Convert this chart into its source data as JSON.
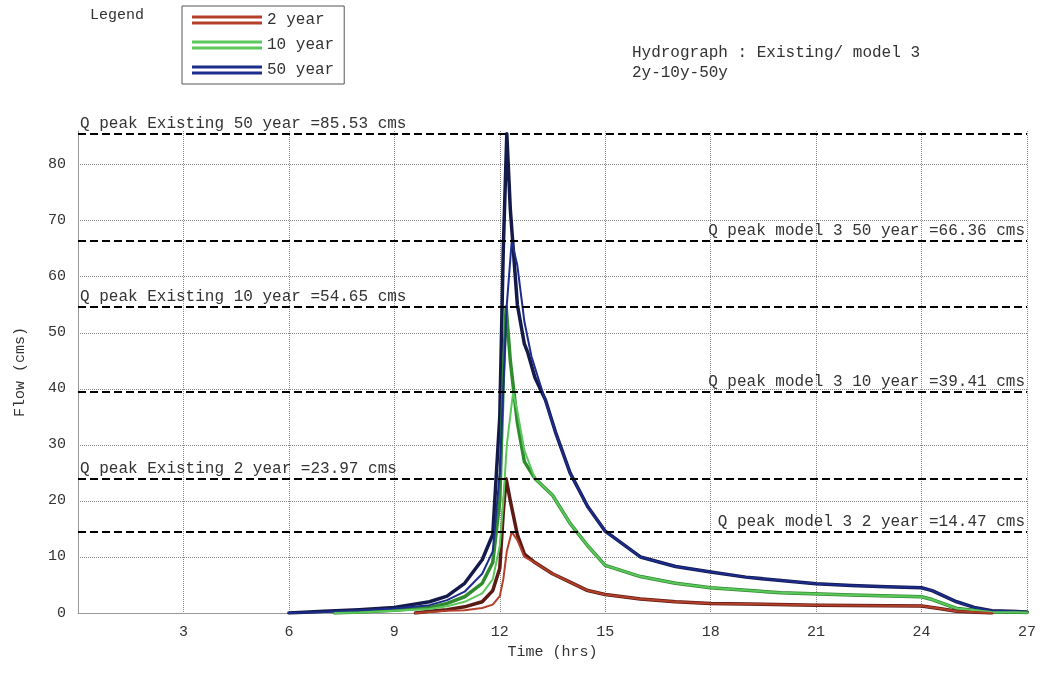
{
  "chart_data": {
    "type": "line",
    "title": "Hydrograph : Existing/ model 3",
    "subtitle": "2y-10y-50y",
    "xlabel": "Time (hrs)",
    "ylabel": "Flow (cms)",
    "legend_title": "Legend",
    "xlim": [
      0,
      27
    ],
    "xticks": [
      {
        "value": 0,
        "label": null
      },
      3,
      6,
      9,
      12,
      15,
      18,
      21,
      24,
      27
    ],
    "ylim": [
      0,
      86
    ],
    "yticks": [
      0,
      10,
      20,
      30,
      40,
      50,
      60,
      70,
      80
    ],
    "grid": true,
    "legend": "top left",
    "marker": "none",
    "series": [
      {
        "color": "#141a4a",
        "x": [
          6,
          7,
          8,
          9,
          10,
          10.5,
          11,
          11.5,
          11.8,
          12,
          12.1,
          12.2,
          12.3,
          12.5,
          12.7,
          12.8,
          13,
          13.3,
          13.6,
          14,
          14.5,
          15,
          16,
          17,
          18,
          19,
          20,
          21,
          22,
          23,
          24,
          24.3,
          25,
          25.5,
          26,
          27
        ],
        "values": [
          0,
          0.3,
          0.6,
          1,
          2,
          3,
          5.3,
          9.5,
          14,
          35,
          65,
          85.53,
          72,
          55,
          48,
          46.4,
          42,
          38,
          32,
          25,
          19,
          14.6,
          10,
          8.3,
          7.3,
          6.4,
          5.8,
          5.2,
          4.9,
          4.7,
          4.5,
          4,
          2,
          1,
          0.4,
          0.2
        ]
      },
      {
        "name": "50 year",
        "color": "#1c2c8c",
        "x": [
          6,
          7,
          8,
          9,
          10,
          10.5,
          11,
          11.5,
          11.8,
          12,
          12.1,
          12.2,
          12.34,
          12.5,
          12.7,
          12.9,
          13.2,
          13.6,
          14,
          14.5,
          15,
          16,
          17,
          18,
          19,
          20,
          21,
          22,
          23,
          24,
          24.3,
          25,
          25.5,
          26,
          27
        ],
        "values": [
          0,
          0.2,
          0.5,
          0.8,
          1.4,
          2.3,
          3.8,
          7,
          11,
          25,
          40,
          55,
          66.36,
          62,
          52,
          45.8,
          39.8,
          32,
          25,
          19,
          14.6,
          10,
          8.3,
          7.3,
          6.4,
          5.8,
          5.2,
          4.9,
          4.7,
          4.5,
          4,
          2,
          1,
          0.4,
          0.2
        ]
      },
      {
        "color": "#2e8b2e",
        "x": [
          7.3,
          8,
          9,
          10,
          10.5,
          11,
          11.5,
          11.8,
          12,
          12.1,
          12.18,
          12.3,
          12.5,
          12.7,
          13,
          13.5,
          14,
          14.5,
          15,
          16,
          17,
          18,
          20,
          22,
          24,
          24.3,
          25,
          26,
          27
        ],
        "values": [
          0,
          0.2,
          0.5,
          1,
          1.7,
          2.9,
          5.3,
          9,
          20,
          42,
          54.65,
          45,
          34,
          27,
          24,
          21,
          16,
          12,
          8.5,
          6.5,
          5.3,
          4.5,
          3.6,
          3.2,
          2.9,
          2.4,
          0.8,
          0.2,
          0.1
        ]
      },
      {
        "name": "10 year",
        "color": "#5cc85c",
        "x": [
          7.3,
          8,
          9,
          10,
          10.5,
          11,
          11.5,
          11.8,
          12,
          12.1,
          12.2,
          12.38,
          12.5,
          12.7,
          13,
          13.5,
          14,
          14.5,
          15,
          16,
          17,
          18,
          20,
          22,
          24,
          24.3,
          25,
          26,
          27
        ],
        "values": [
          0,
          0.1,
          0.4,
          0.7,
          1.2,
          2,
          3.5,
          6,
          12,
          20,
          30,
          39.41,
          36,
          29,
          24,
          21,
          16,
          12,
          8.5,
          6.5,
          5.3,
          4.5,
          3.6,
          3.2,
          2.9,
          2.4,
          0.8,
          0.2,
          0.1
        ]
      },
      {
        "color": "#5c1a14",
        "x": [
          9.6,
          10,
          10.5,
          11,
          11.5,
          11.8,
          12,
          12.1,
          12.18,
          12.3,
          12.5,
          12.7,
          13,
          13.5,
          14,
          14.5,
          15,
          16,
          17,
          18,
          21,
          24,
          24.5,
          25,
          26
        ],
        "values": [
          0,
          0.3,
          0.6,
          1.1,
          2,
          4,
          8,
          18,
          23.97,
          20,
          14,
          10.5,
          9,
          7,
          5.5,
          4,
          3.3,
          2.5,
          2,
          1.7,
          1.4,
          1.25,
          0.8,
          0.3,
          0
        ]
      },
      {
        "name": "2 year",
        "color": "#b5402a",
        "x": [
          9.6,
          10,
          10.5,
          11,
          11.5,
          11.8,
          12,
          12.1,
          12.2,
          12.34,
          12.5,
          12.7,
          13,
          13.5,
          14,
          14.5,
          15,
          16,
          17,
          18,
          21,
          24,
          24.5,
          25,
          26
        ],
        "values": [
          0,
          0.2,
          0.4,
          0.5,
          0.9,
          1.5,
          3,
          6,
          11,
          14.47,
          13,
          10,
          9,
          7,
          5.5,
          4,
          3.3,
          2.5,
          2,
          1.7,
          1.4,
          1.25,
          0.8,
          0.3,
          0
        ]
      }
    ],
    "ref_lines": [
      {
        "axis": "y",
        "value": 85.53,
        "label": "Q peak Existing 50 year =85.53 cms",
        "color": "#000000",
        "line_style": "dashed"
      },
      {
        "axis": "y",
        "value": 66.36,
        "label": "Q peak model 3 50 year =66.36 cms",
        "color": "#000000",
        "line_style": "dashed"
      },
      {
        "axis": "y",
        "value": 54.65,
        "label": "Q peak Existing 10 year =54.65 cms",
        "color": "#000000",
        "line_style": "dashed"
      },
      {
        "axis": "y",
        "value": 39.41,
        "label": "Q peak model 3 10 year =39.41 cms",
        "color": "#000000",
        "line_style": "dashed"
      },
      {
        "axis": "y",
        "value": 23.97,
        "label": "Q peak Existing 2 year =23.97 cms",
        "color": "#000000",
        "line_style": "dashed"
      },
      {
        "axis": "y",
        "value": 14.47,
        "label": "Q peak model 3 2 year =14.47 cms",
        "color": "#000000",
        "line_style": "dashed"
      }
    ]
  }
}
